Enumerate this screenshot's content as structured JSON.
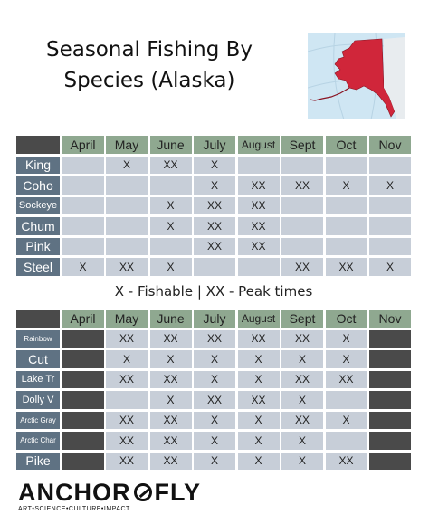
{
  "title_line1": "Seasonal Fishing By",
  "title_line2": "Species (Alaska)",
  "legend": "X - Fishable | XX - Peak times",
  "logo": {
    "left": "ANCHOR",
    "right": "FLY",
    "tagline": "ART•SCIENCE•CULTURE•IMPACT"
  },
  "months": [
    "April",
    "May",
    "June",
    "July",
    "August",
    "Sept",
    "Oct",
    "Nov"
  ],
  "table1": [
    {
      "species": "King",
      "cells": [
        "",
        "X",
        "XX",
        "X",
        "",
        "",
        "",
        ""
      ]
    },
    {
      "species": "Coho",
      "cells": [
        "",
        "",
        "",
        "X",
        "XX",
        "XX",
        "X",
        "X"
      ]
    },
    {
      "species": "Sockeye",
      "cells": [
        "",
        "",
        "X",
        "XX",
        "XX",
        "",
        "",
        ""
      ]
    },
    {
      "species": "Chum",
      "cells": [
        "",
        "",
        "X",
        "XX",
        "XX",
        "",
        "",
        ""
      ]
    },
    {
      "species": "Pink",
      "cells": [
        "",
        "",
        "",
        "XX",
        "XX",
        "",
        "",
        ""
      ]
    },
    {
      "species": "Steel",
      "cells": [
        "X",
        "XX",
        "X",
        "",
        "",
        "XX",
        "XX",
        "X"
      ]
    }
  ],
  "table2": [
    {
      "species": "Rainbow",
      "cells": [
        "#",
        "XX",
        "XX",
        "XX",
        "XX",
        "XX",
        "X",
        "#"
      ]
    },
    {
      "species": "Cut",
      "cells": [
        "#",
        "X",
        "X",
        "X",
        "X",
        "X",
        "X",
        "#"
      ]
    },
    {
      "species": "Lake Tr",
      "cells": [
        "#",
        "XX",
        "XX",
        "X",
        "X",
        "XX",
        "XX",
        "#"
      ]
    },
    {
      "species": "Dolly V",
      "cells": [
        "#",
        "",
        "X",
        "XX",
        "XX",
        "X",
        "",
        "#"
      ]
    },
    {
      "species": "Arctic Gray",
      "cells": [
        "#",
        "XX",
        "XX",
        "X",
        "X",
        "XX",
        "X",
        "#"
      ]
    },
    {
      "species": "Arctic Char",
      "cells": [
        "#",
        "XX",
        "XX",
        "X",
        "X",
        "X",
        "",
        "#"
      ]
    },
    {
      "species": "Pike",
      "cells": [
        "#",
        "XX",
        "XX",
        "X",
        "X",
        "X",
        "XX",
        "#"
      ]
    }
  ],
  "colors": {
    "month_header": "#8fa890",
    "species_label": "#5f7283",
    "cell": "#c7ced8",
    "blocked": "#4a4a4a",
    "map_water": "#cfe6f3",
    "map_land": "#d0263a"
  }
}
